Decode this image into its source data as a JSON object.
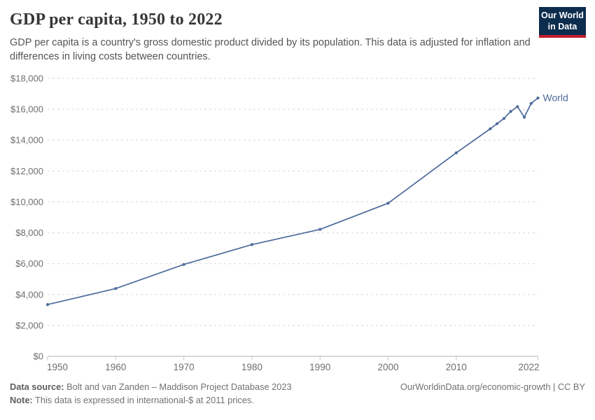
{
  "header": {
    "title": "GDP per capita, 1950 to 2022",
    "subtitle": "GDP per capita is a country's gross domestic product divided by its population. This data is adjusted for inflation and differences in living costs between countries.",
    "logo": {
      "line1": "Our World",
      "line2": "in Data",
      "bg_color": "#0d2d4e",
      "bar_color": "#c0202e"
    }
  },
  "chart_data": {
    "type": "line",
    "title": "GDP per capita, 1950 to 2022",
    "unit": "international-$ at 2011 prices",
    "xlabel": "",
    "ylabel": "",
    "xlim": [
      1950,
      2022
    ],
    "ylim": [
      0,
      18000
    ],
    "xticks": [
      1950,
      1960,
      1970,
      1980,
      1990,
      2000,
      2010,
      2022
    ],
    "yticks": [
      {
        "value": 0,
        "label": "$0"
      },
      {
        "value": 2000,
        "label": "$2,000"
      },
      {
        "value": 4000,
        "label": "$4,000"
      },
      {
        "value": 6000,
        "label": "$6,000"
      },
      {
        "value": 8000,
        "label": "$8,000"
      },
      {
        "value": 10000,
        "label": "$10,000"
      },
      {
        "value": 12000,
        "label": "$12,000"
      },
      {
        "value": 14000,
        "label": "$14,000"
      },
      {
        "value": 16000,
        "label": "$16,000"
      },
      {
        "value": 18000,
        "label": "$18,000"
      }
    ],
    "grid": "horizontal-dashed",
    "legend_position": "end-of-line",
    "series": [
      {
        "name": "World",
        "color": "#4c6a9c",
        "points": [
          {
            "year": 1950,
            "value": 3350
          },
          {
            "year": 1960,
            "value": 4390
          },
          {
            "year": 1970,
            "value": 5950
          },
          {
            "year": 1980,
            "value": 7235
          },
          {
            "year": 1990,
            "value": 8220
          },
          {
            "year": 2000,
            "value": 9915
          },
          {
            "year": 2010,
            "value": 13180
          },
          {
            "year": 2015,
            "value": 14735
          },
          {
            "year": 2016,
            "value": 15065
          },
          {
            "year": 2017,
            "value": 15400
          },
          {
            "year": 2018,
            "value": 15860
          },
          {
            "year": 2019,
            "value": 16170
          },
          {
            "year": 2020,
            "value": 15490
          },
          {
            "year": 2021,
            "value": 16380
          },
          {
            "year": 2022,
            "value": 16730
          }
        ]
      }
    ],
    "style": {
      "grid_color": "#d9d9d9",
      "axis_color": "#b3b3b3",
      "tick_color": "#c4c4c4",
      "tick_label_color": "#6e6e6e"
    }
  },
  "footer": {
    "source_label": "Data source:",
    "source_text": " Bolt and van Zanden – Maddison Project Database 2023",
    "note_label": "Note:",
    "note_text": " This data is expressed in international-$ at 2011 prices.",
    "link_text": "OurWorldinData.org/economic-growth | CC BY"
  }
}
